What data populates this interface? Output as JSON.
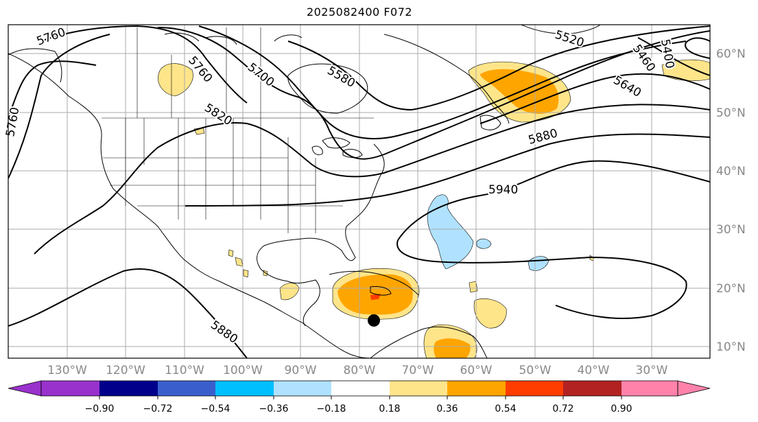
{
  "title": "2025082400 F072",
  "map": {
    "lon_labels": [
      "130°W",
      "120°W",
      "110°W",
      "100°W",
      "90°W",
      "80°W",
      "70°W",
      "60°W",
      "50°W",
      "40°W",
      "30°W"
    ],
    "lat_labels": [
      "60°N",
      "50°N",
      "40°N",
      "30°N",
      "20°N",
      "10°N"
    ],
    "contour_labels": [
      "5760",
      "5760",
      "5760",
      "5700",
      "5820",
      "5580",
      "5520",
      "5460",
      "5400",
      "5640",
      "5880",
      "5940",
      "5880"
    ],
    "storm_marker": "tropical-center"
  },
  "colorbar": {
    "ticks": [
      "−0.90",
      "−0.72",
      "−0.54",
      "−0.36",
      "−0.18",
      "0.18",
      "0.36",
      "0.54",
      "0.72",
      "0.90"
    ],
    "colors": [
      "#9932cc",
      "#00008b",
      "#3a5fcd",
      "#00bfff",
      "#b0e2ff",
      "#ffffff",
      "#ffe58a",
      "#ffa500",
      "#ff3d00",
      "#b22222",
      "#ff82ab"
    ]
  }
}
